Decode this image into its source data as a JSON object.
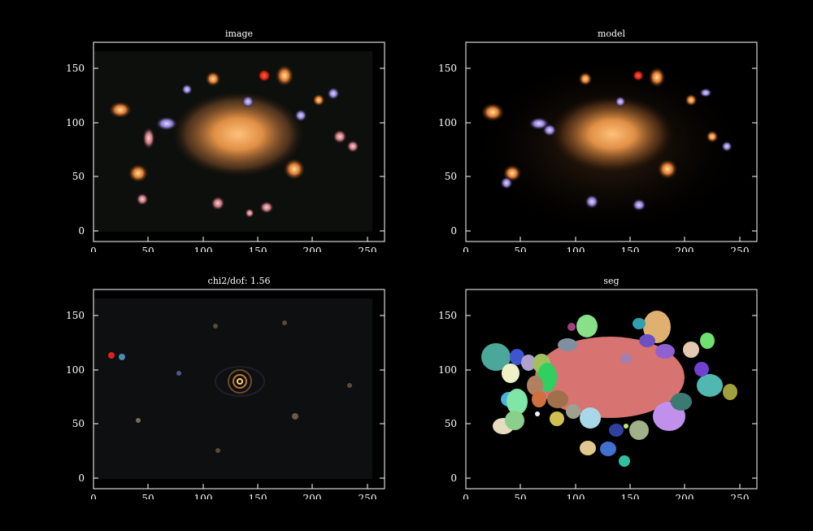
{
  "panels": [
    {
      "id": "image",
      "title": "image"
    },
    {
      "id": "model",
      "title": "model"
    },
    {
      "id": "residual",
      "title": "chi2/dof: 1.56"
    },
    {
      "id": "seg",
      "title": "seg"
    }
  ],
  "axes": {
    "x_ticks": [
      "0",
      "50",
      "100",
      "150",
      "200",
      "250"
    ],
    "y_ticks": [
      "0",
      "50",
      "100",
      "150"
    ],
    "x_range": [
      -10,
      262
    ],
    "y_range": [
      -7,
      172
    ]
  },
  "colors": {
    "background": "#000000",
    "axis": "#ffffff",
    "central_galaxy": "#d9843c",
    "seg_central": "#d77371"
  }
}
